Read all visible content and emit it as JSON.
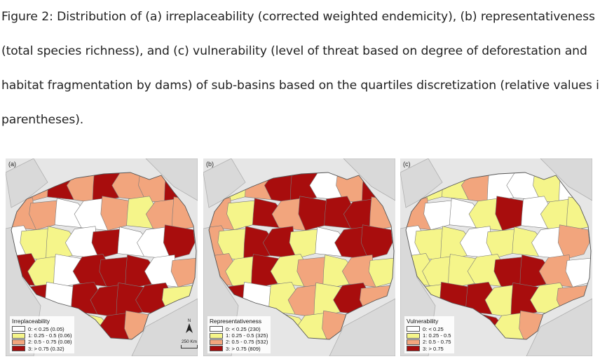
{
  "caption": {
    "lines": [
      "Figure 2: Distribution of (a) irreplaceability (corrected weighted endemicity), (b) representativeness",
      "(total species richness), and (c) vulnerability (level of threat based on degree of deforestation and",
      "habitat fragmentation by dams) of sub-basins based on the quartiles discretization (relative values in",
      "parentheses)."
    ]
  },
  "colors": {
    "class0": "#ffffff",
    "class1": "#f5f58a",
    "class2": "#f2a57d",
    "class3": "#a80d0d",
    "background": "#e6e6e6",
    "border": "#7a7a7a"
  },
  "panels": [
    {
      "label": "(a)",
      "legend": {
        "title": "Irreplaceability",
        "items": [
          "0: < 0.25 (0.05)",
          "1: 0.25 - 0.5 (0.06)",
          "2: 0.5 - 0.75 (0.08)",
          "3: > 0.75 (0.32)"
        ]
      }
    },
    {
      "label": "(b)",
      "legend": {
        "title": "Representativeness",
        "items": [
          "0: < 0.25 (230)",
          "1: 0.25 - 0.5 (325)",
          "2: 0.5 - 0.75 (532)",
          "3: > 0.75 (809)"
        ]
      }
    },
    {
      "label": "(c)",
      "legend": {
        "title": "Vulnerability",
        "items": [
          "0: < 0.25",
          "1: 0.25 - 0.5",
          "2: 0.5 - 0.75",
          "3: > 0.75"
        ]
      }
    }
  ],
  "map_furniture": {
    "north_label": "N",
    "scale_label": "250 Km"
  }
}
